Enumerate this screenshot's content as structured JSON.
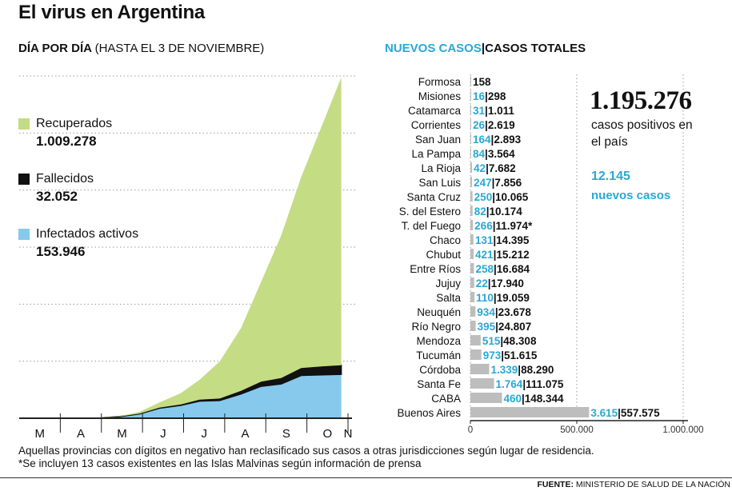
{
  "title": "El virus en Argentina",
  "left_subtitle": {
    "bold": "DÍA POR DÍA",
    "light": "(HASTA EL 3 DE NOVIEMBRE)"
  },
  "right_subtitle": {
    "new": "NUEVOS CASOS",
    "sep": "|",
    "total": "CASOS TOTALES"
  },
  "legend": [
    {
      "label": "Recuperados",
      "value": "1.009.278",
      "color": "#c4dc84"
    },
    {
      "label": "Fallecidos",
      "value": "32.052",
      "color": "#111111"
    },
    {
      "label": "Infectados activos",
      "value": "153.946",
      "color": "#86c9ec"
    }
  ],
  "summary": {
    "total": "1.195.276",
    "total_desc": "casos positivos en el país",
    "new_value": "12.145",
    "new_desc": "nuevos casos"
  },
  "colors": {
    "cyan": "#27a9d6",
    "bar": "#bdbdbd",
    "recovered": "#c4dc84",
    "active": "#86c9ec",
    "deaths": "#111111"
  },
  "chart_data": [
    {
      "type": "area",
      "months": [
        "M",
        "A",
        "M",
        "J",
        "J",
        "A",
        "S",
        "O",
        "N"
      ],
      "stacked_series": [
        {
          "name": "Infectados activos",
          "values": [
            0,
            0,
            0,
            500,
            6000,
            15000,
            35000,
            45000,
            60000,
            62000,
            85000,
            112000,
            120000,
            150000,
            152000,
            153946
          ]
        },
        {
          "name": "Fallecidos",
          "values": [
            0,
            0,
            0,
            50,
            600,
            1300,
            2200,
            3400,
            5000,
            7000,
            11000,
            16000,
            21000,
            26000,
            30000,
            32052
          ]
        },
        {
          "name": "Recuperados",
          "values": [
            0,
            0,
            0,
            0,
            1500,
            6000,
            18000,
            40000,
            70000,
            130000,
            220000,
            350000,
            500000,
            670000,
            850000,
            1009278
          ]
        }
      ],
      "x_day_index": [
        0,
        15,
        30,
        60,
        76,
        90,
        105,
        121,
        135,
        150,
        166,
        181,
        196,
        211,
        227,
        241
      ],
      "x_day_max": 246,
      "ylim": [
        0,
        1200000
      ],
      "grid": true
    },
    {
      "type": "bar",
      "orientation": "horizontal",
      "categories": [
        "Formosa",
        "Misiones",
        "Catamarca",
        "Corrientes",
        "San Juan",
        "La Pampa",
        "La Rioja",
        "San Luis",
        "Santa Cruz",
        "S. del Estero",
        "T. del Fuego",
        "Chaco",
        "Chubut",
        "Entre Ríos",
        "Jujuy",
        "Salta",
        "Neuquén",
        "Río Negro",
        "Mendoza",
        "Tucumán",
        "Córdoba",
        "Santa Fe",
        "CABA",
        "Buenos Aires"
      ],
      "new_cases": [
        "",
        "16",
        "31",
        "26",
        "164",
        "84",
        "42",
        "247",
        "250",
        "82",
        "266",
        "131",
        "421",
        "258",
        "22",
        "110",
        "934",
        "395",
        "515",
        "973",
        "1.339",
        "1.764",
        "460",
        "3.615"
      ],
      "total_cases": [
        "158",
        "298",
        "1.011",
        "2.619",
        "2.893",
        "3.564",
        "7.682",
        "7.856",
        "10.065",
        "10.174",
        "11.974*",
        "14.395",
        "15.212",
        "16.684",
        "17.940",
        "19.059",
        "23.678",
        "24.807",
        "48.308",
        "51.615",
        "88.290",
        "111.075",
        "148.344",
        "557.575"
      ],
      "values": [
        158,
        298,
        1011,
        2619,
        2893,
        3564,
        7682,
        7856,
        10065,
        10174,
        11974,
        14395,
        15212,
        16684,
        17940,
        19059,
        23678,
        24807,
        48308,
        51615,
        88290,
        111075,
        148344,
        557575
      ],
      "x_ticks": [
        "0",
        "500.000",
        "1.000.000"
      ],
      "xlim": [
        0,
        1000000
      ],
      "grid": true
    }
  ],
  "footnotes": [
    "Aquellas provincias con dígitos en negativo han reclasificado sus casos a otras jurisdicciones según lugar de residencia.",
    "*Se incluyen 13 casos existentes en las Islas Malvinas según información de prensa"
  ],
  "source": {
    "label": "FUENTE:",
    "text": "MINISTERIO DE SALUD DE LA NACIÓN"
  }
}
